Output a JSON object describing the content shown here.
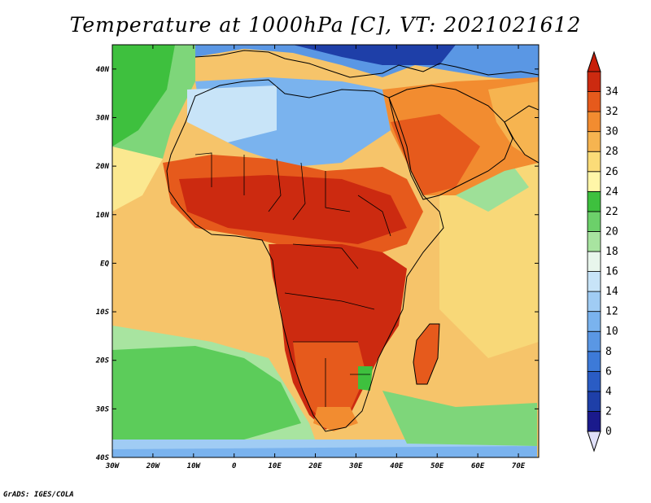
{
  "title": "Temperature at 1000hPa [C], VT: 2021021612",
  "credit": "GrADS: IGES/COLA",
  "map": {
    "projection": "latlon",
    "lon_range": [
      -30,
      75
    ],
    "lat_range": [
      -40,
      45
    ],
    "lon_ticks": [
      "30W",
      "20W",
      "10W",
      "0",
      "10E",
      "20E",
      "30E",
      "40E",
      "50E",
      "60E",
      "70E"
    ],
    "lat_ticks": [
      "40N",
      "30N",
      "20N",
      "10N",
      "EQ",
      "10S",
      "20S",
      "30S",
      "40S"
    ]
  },
  "colorbar": {
    "labels": [
      "0",
      "2",
      "4",
      "6",
      "8",
      "10",
      "12",
      "14",
      "16",
      "18",
      "20",
      "22",
      "24",
      "26",
      "28",
      "30",
      "32",
      "34"
    ],
    "colors": [
      "#1a1a8c",
      "#1e3fa8",
      "#2a5cc4",
      "#3d7ad8",
      "#5a97e4",
      "#7ab3ee",
      "#a0ccf4",
      "#c8e4f8",
      "#e8f6ec",
      "#a8e4a0",
      "#6cd06a",
      "#3ec03e",
      "#fff6a8",
      "#fbdc78",
      "#f6b450",
      "#f28c30",
      "#e65a1c",
      "#cc2a10",
      "#b01a0a"
    ],
    "under_color": "#e0e0f8",
    "over_color": "#c81e0a"
  }
}
